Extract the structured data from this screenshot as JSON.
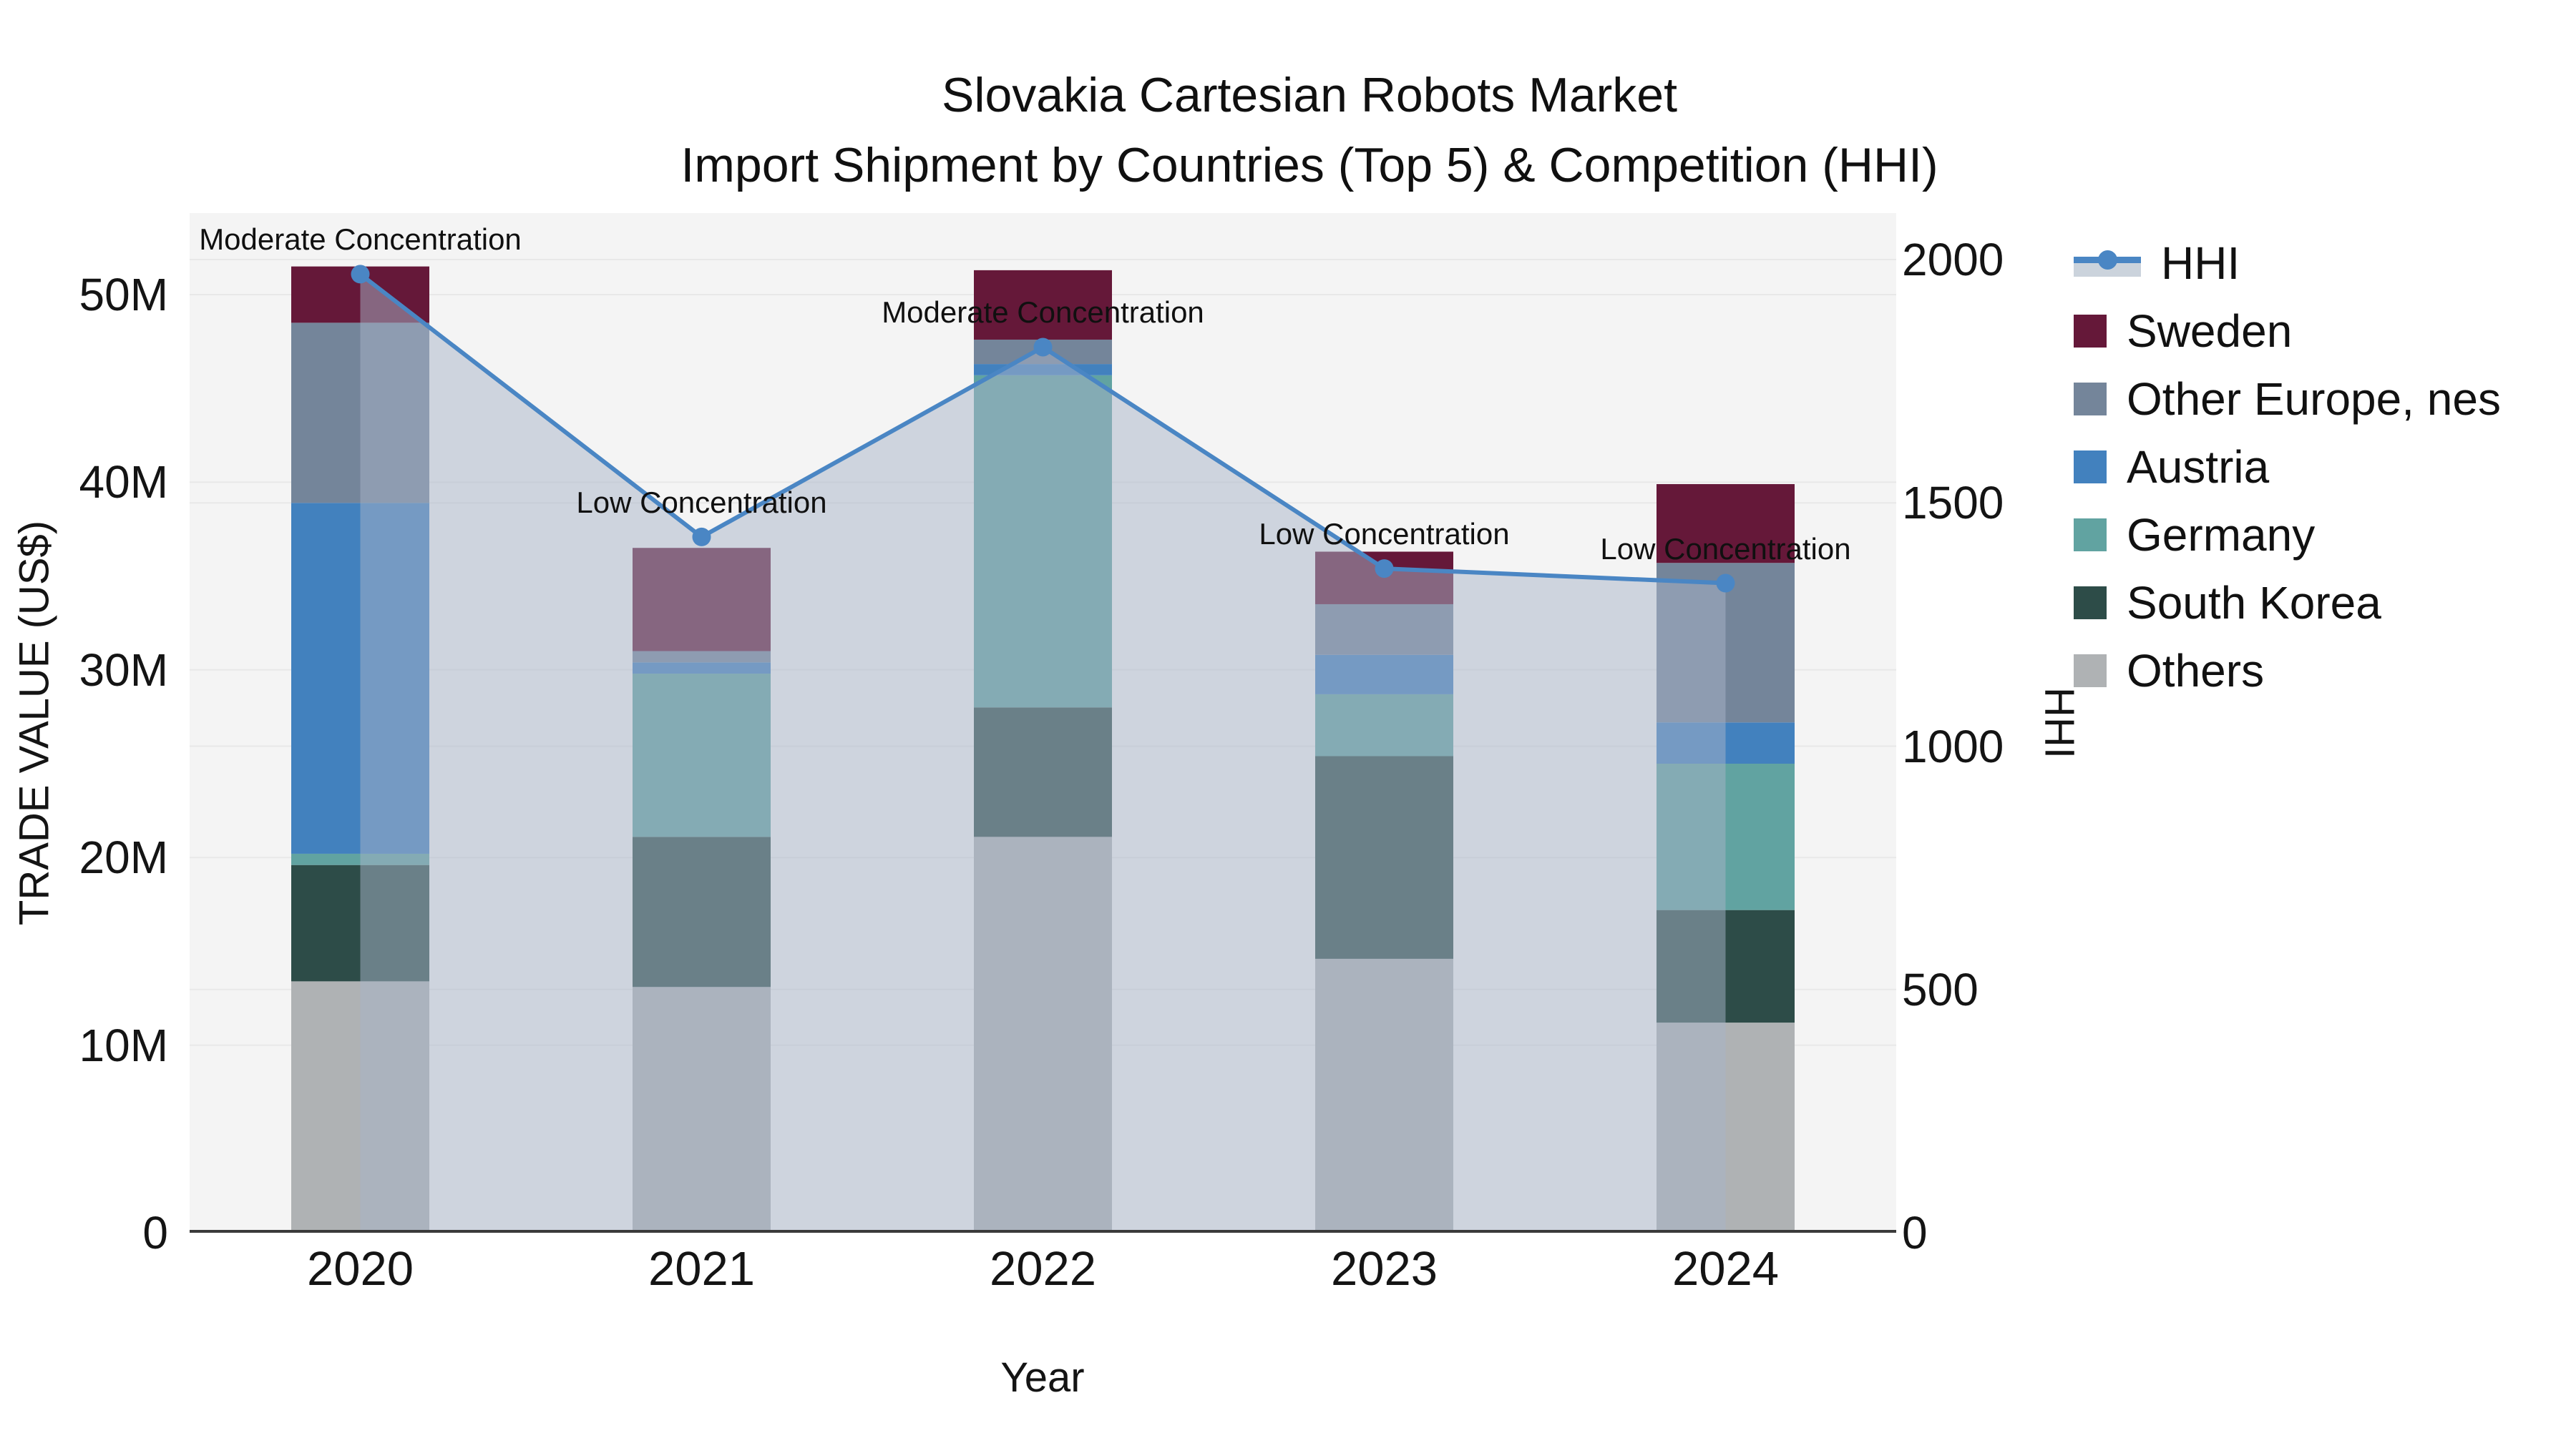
{
  "title": {
    "line1": "Slovakia Cartesian Robots Market",
    "line2": "Import Shipment by Countries (Top 5) & Competition (HHI)"
  },
  "axes": {
    "left": {
      "title": "TRADE VALUE (US$)",
      "tick_values": [
        0,
        10,
        20,
        30,
        40,
        50
      ],
      "tick_labels": [
        "0",
        "10M",
        "20M",
        "30M",
        "40M",
        "50M"
      ]
    },
    "right": {
      "title": "HHI",
      "tick_values": [
        0,
        500,
        1000,
        1500,
        2000
      ],
      "tick_labels": [
        "0",
        "500",
        "1000",
        "1500",
        "2000"
      ]
    },
    "x": {
      "title": "Year",
      "categories": [
        "2020",
        "2021",
        "2022",
        "2023",
        "2024"
      ]
    }
  },
  "legend": {
    "items": [
      {
        "label": "HHI",
        "type": "line"
      },
      {
        "label": "Sweden",
        "type": "swatch",
        "color": "#651839"
      },
      {
        "label": "Other Europe, nes",
        "type": "swatch",
        "color": "#74859A"
      },
      {
        "label": "Austria",
        "type": "swatch",
        "color": "#4281BE"
      },
      {
        "label": "Germany",
        "type": "swatch",
        "color": "#61A3A1"
      },
      {
        "label": "South Korea",
        "type": "swatch",
        "color": "#2D4C48"
      },
      {
        "label": "Others",
        "type": "swatch",
        "color": "#AFB2B4"
      }
    ]
  },
  "chart_data": {
    "type": "bar+line",
    "title": "Slovakia Cartesian Robots Market — Import Shipment by Countries (Top 5) & Competition (HHI)",
    "categories": [
      "2020",
      "2021",
      "2022",
      "2023",
      "2024"
    ],
    "xlabel": "Year",
    "ylabel_left": "TRADE VALUE (US$)",
    "ylabel_right": "HHI",
    "ylim_left_musd": [
      0,
      54.3
    ],
    "ylim_right_hhi": [
      0,
      2095
    ],
    "grid": true,
    "legend_position": "right",
    "bar_stack_bottom_to_top": [
      "Others",
      "South Korea",
      "Germany",
      "Austria",
      "Other Europe, nes",
      "Sweden"
    ],
    "series": [
      {
        "name": "Others",
        "color": "#AFB2B4",
        "values_musd": [
          13.4,
          13.1,
          21.1,
          14.6,
          11.2
        ]
      },
      {
        "name": "South Korea",
        "color": "#2D4C48",
        "values_musd": [
          6.2,
          8.0,
          6.9,
          10.8,
          6.0
        ]
      },
      {
        "name": "Germany",
        "color": "#61A3A1",
        "values_musd": [
          0.6,
          8.7,
          17.7,
          3.3,
          7.8
        ]
      },
      {
        "name": "Austria",
        "color": "#4281BE",
        "values_musd": [
          18.7,
          0.6,
          0.6,
          2.1,
          2.2
        ]
      },
      {
        "name": "Other Europe, nes",
        "color": "#74859A",
        "values_musd": [
          9.6,
          0.6,
          1.3,
          2.7,
          8.5
        ]
      },
      {
        "name": "Sweden",
        "color": "#651839",
        "values_musd": [
          3.0,
          5.5,
          3.7,
          2.8,
          4.2
        ]
      }
    ],
    "bar_totals_musd": [
      51.5,
      36.5,
      51.3,
      36.3,
      39.9
    ],
    "line_series": {
      "name": "HHI",
      "color": "#4A86C4",
      "fill_color": "rgba(168,180,200,0.5)",
      "values": [
        1970,
        1430,
        1820,
        1365,
        1335
      ]
    },
    "annotations": [
      {
        "year": "2020",
        "text": "Moderate Concentration"
      },
      {
        "year": "2021",
        "text": "Low Concentration"
      },
      {
        "year": "2022",
        "text": "Moderate Concentration"
      },
      {
        "year": "2023",
        "text": "Low Concentration"
      },
      {
        "year": "2024",
        "text": "Low Concentration"
      }
    ]
  },
  "colors": {
    "plot_background": "#F4F4F4",
    "gridline": "#E8E8E8",
    "axis_line": "#3A3A3A",
    "text": "#111111",
    "legend_fill_band": "#CBD3DC"
  }
}
